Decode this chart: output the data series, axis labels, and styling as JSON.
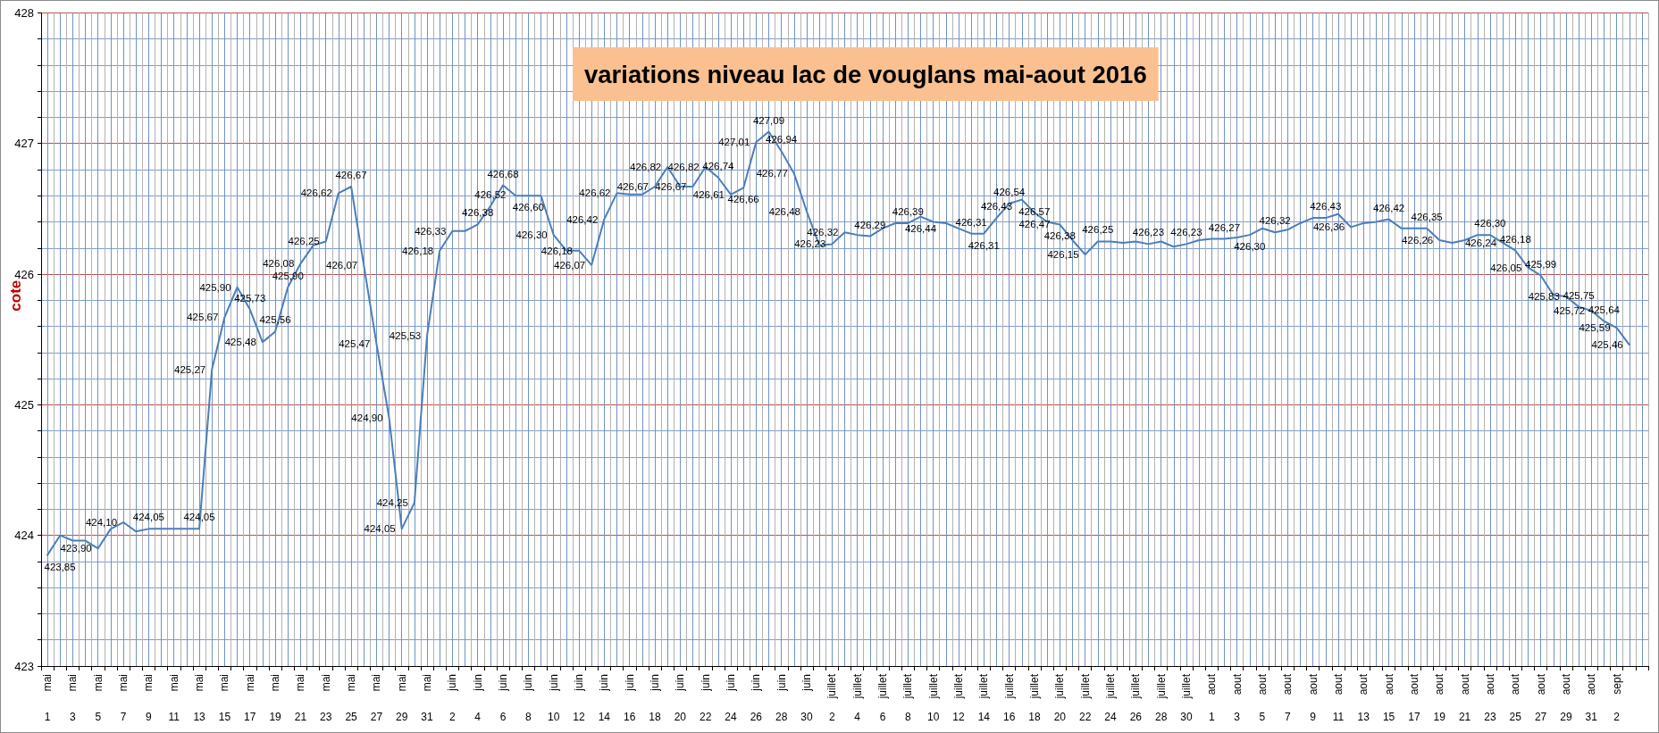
{
  "chart_data": {
    "type": "line",
    "title": "variations niveau lac de vouglans mai-aout 2016",
    "ylabel": "cote",
    "categories": [
      "mai 1",
      null,
      "mai 3",
      null,
      "mai 5",
      null,
      "mai 7",
      null,
      "mai 9",
      null,
      "mai 11",
      null,
      "mai 13",
      null,
      "mai 15",
      null,
      "mai 17",
      null,
      "mai 19",
      null,
      "mai 21",
      null,
      "mai 23",
      null,
      "mai 25",
      null,
      "mai 27",
      null,
      "mai 29",
      null,
      "mai 31",
      null,
      "juin 2",
      null,
      "juin 4",
      null,
      "juin 6",
      null,
      "juin 8",
      null,
      "juin 10",
      null,
      "juin 12",
      null,
      "juin 14",
      null,
      "juin 16",
      null,
      "juin 18",
      null,
      "juin 20",
      null,
      "juin 22",
      null,
      "juin 24",
      null,
      "juin 26",
      null,
      "juin 28",
      null,
      "juin 30",
      null,
      "juillet 2",
      null,
      "juillet 4",
      null,
      "juillet 6",
      null,
      "juillet 8",
      null,
      "juillet 10",
      null,
      "juillet 12",
      null,
      "juillet 14",
      null,
      "juillet 16",
      null,
      "juillet 18",
      null,
      "juillet 20",
      null,
      "juillet 22",
      null,
      "juillet 24",
      null,
      "juillet 26",
      null,
      "juillet 28",
      null,
      "juillet 30",
      null,
      "aout 1",
      null,
      "aout 3",
      null,
      "aout 5",
      null,
      "aout 7",
      null,
      "aout 9",
      null,
      "aout 11",
      null,
      "aout 13",
      null,
      "aout 15",
      null,
      "aout 17",
      null,
      "aout 19",
      null,
      "aout 21",
      null,
      "aout 23",
      null,
      "aout 25",
      null,
      "aout 27",
      null,
      "aout 29",
      null,
      "aout 31",
      null,
      "sept 2",
      null,
      null
    ],
    "values": [
      423.85,
      424,
      423.96,
      423.96,
      423.9,
      424.05,
      424.1,
      424.03,
      424.05,
      424.05,
      424.05,
      424.05,
      424.05,
      425.27,
      425.67,
      425.9,
      425.73,
      425.48,
      425.56,
      425.9,
      426.08,
      426.22,
      426.25,
      426.62,
      426.67,
      426.07,
      425.47,
      424.9,
      424.05,
      424.25,
      425.53,
      426.18,
      426.33,
      426.33,
      426.38,
      426.52,
      426.68,
      426.6,
      426.6,
      426.6,
      426.3,
      426.18,
      426.18,
      426.07,
      426.42,
      426.62,
      426.61,
      426.61,
      426.67,
      426.82,
      426.67,
      426.67,
      426.82,
      426.74,
      426.61,
      426.66,
      427.01,
      427.09,
      426.94,
      426.77,
      426.48,
      426.22,
      426.23,
      426.32,
      426.3,
      426.29,
      426.35,
      426.39,
      426.39,
      426.44,
      426.4,
      426.39,
      426.35,
      426.31,
      426.31,
      426.43,
      426.54,
      426.57,
      426.47,
      426.4,
      426.38,
      426.26,
      426.15,
      426.25,
      426.25,
      426.24,
      426.25,
      426.23,
      426.25,
      426.21,
      426.23,
      426.26,
      426.27,
      426.27,
      426.28,
      426.3,
      426.35,
      426.32,
      426.34,
      426.39,
      426.43,
      426.43,
      426.46,
      426.36,
      426.39,
      426.4,
      426.42,
      426.35,
      426.35,
      426.35,
      426.26,
      426.24,
      426.26,
      426.3,
      426.3,
      426.24,
      426.18,
      426.05,
      425.99,
      425.84,
      425.83,
      425.75,
      425.72,
      425.64,
      425.59,
      425.46,
      null
    ],
    "value_labels": [
      "423,85",
      null,
      null,
      null,
      "423,90",
      null,
      "424,10",
      null,
      "424,05",
      null,
      null,
      null,
      "424,05",
      "425,27",
      "425,67",
      "425,90",
      "425,73",
      "425,48",
      "425,56",
      "425,90",
      "426,08",
      null,
      "426,25",
      "426,62",
      "426,67",
      "426,07",
      "425,47",
      "424,90",
      "424,05",
      "424,25",
      "425,53",
      "426,18",
      "426,33",
      null,
      "426,38",
      "426,52",
      "426,68",
      null,
      "426,60",
      null,
      "426,30",
      null,
      "426,18",
      "426,07",
      "426,42",
      "426,62",
      null,
      null,
      "426,67",
      "426,82",
      null,
      "426,67",
      "426,82",
      "426,74",
      "426,61",
      "426,66",
      "427,01",
      "427,09",
      "426,94",
      "426,77",
      "426,48",
      null,
      "426,23",
      "426,32",
      null,
      "426,29",
      null,
      null,
      "426,39",
      "426,44",
      null,
      null,
      null,
      "426,31",
      "426,31",
      "426,43",
      "426,54",
      "426,57",
      "426,47",
      null,
      "426,38",
      null,
      "426,15",
      "426,25",
      null,
      null,
      null,
      "426,23",
      null,
      null,
      "426,23",
      null,
      null,
      "426,27",
      null,
      "426,30",
      null,
      "426,32",
      null,
      null,
      null,
      "426,43",
      null,
      "426,36",
      null,
      null,
      "426,42",
      null,
      null,
      "426,35",
      "426,26",
      null,
      null,
      null,
      "426,30",
      "426,24",
      "426,18",
      "426,05",
      "425,99",
      null,
      "425,83",
      "425,75",
      "425,72",
      "425,64",
      "425,59",
      "425,46",
      null
    ],
    "color": "#4a7ebb",
    "ylim": [
      423,
      428
    ],
    "yticks": [
      423,
      {
        "value": 423.2,
        "label": null
      },
      {
        "value": 423.4,
        "label": null
      },
      {
        "value": 423.6,
        "label": null
      },
      {
        "value": 423.8,
        "label": null
      },
      424,
      {
        "value": 424.2,
        "label": null
      },
      {
        "value": 424.4,
        "label": null
      },
      {
        "value": 424.6,
        "label": null
      },
      {
        "value": 424.8,
        "label": null
      },
      425,
      {
        "value": 425.2,
        "label": null
      },
      {
        "value": 425.4,
        "label": null
      },
      {
        "value": 425.6,
        "label": null
      },
      {
        "value": 425.8,
        "label": null
      },
      426,
      {
        "value": 426.2,
        "label": null
      },
      {
        "value": 426.4,
        "label": null
      },
      {
        "value": 426.6,
        "label": null
      },
      {
        "value": 426.8,
        "label": null
      },
      427,
      {
        "value": 427.2,
        "label": null
      },
      {
        "value": 427.4,
        "label": null
      },
      {
        "value": 427.6,
        "label": null
      },
      {
        "value": 427.8,
        "label": null
      },
      428
    ],
    "grid": true
  }
}
